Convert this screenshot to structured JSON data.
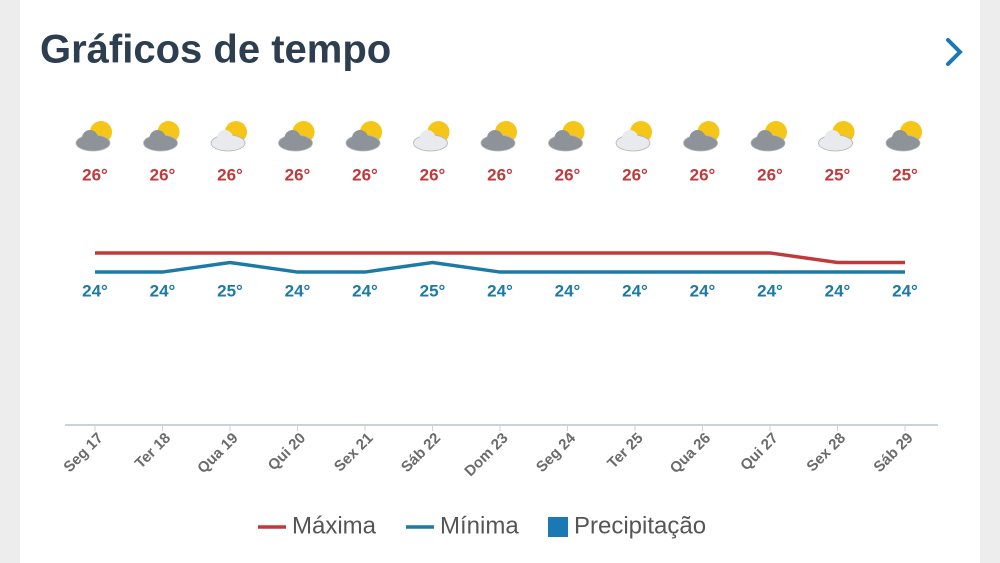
{
  "chart_data": {
    "type": "line",
    "title": "Gráficos de tempo",
    "categories": [
      "Seg 17",
      "Ter 18",
      "Qua 19",
      "Qui 20",
      "Sex 21",
      "Sáb 22",
      "Dom 23",
      "Seg 24",
      "Ter 25",
      "Qua 26",
      "Qui 27",
      "Sex 28",
      "Sáb 29"
    ],
    "series": [
      {
        "name": "Máxima",
        "color": "#c0393b",
        "values": [
          26,
          26,
          26,
          26,
          26,
          26,
          26,
          26,
          26,
          26,
          26,
          25,
          25
        ],
        "value_labels": [
          "26°",
          "26°",
          "26°",
          "26°",
          "26°",
          "26°",
          "26°",
          "26°",
          "26°",
          "26°",
          "26°",
          "25°",
          "25°"
        ]
      },
      {
        "name": "Mínima",
        "color": "#1c7aa6",
        "values": [
          24,
          24,
          25,
          24,
          24,
          25,
          24,
          24,
          24,
          24,
          24,
          24,
          24
        ],
        "value_labels": [
          "24°",
          "24°",
          "25°",
          "24°",
          "24°",
          "25°",
          "24°",
          "24°",
          "24°",
          "24°",
          "24°",
          "24°",
          "24°"
        ]
      },
      {
        "name": "Precipitação",
        "color": "#1a78b4",
        "type": "bar",
        "values": [
          0,
          0,
          0,
          0,
          0,
          0,
          0,
          0,
          0,
          0,
          0,
          0,
          0
        ]
      }
    ],
    "ylim": [
      8,
      42
    ],
    "legend": "bottom"
  }
}
